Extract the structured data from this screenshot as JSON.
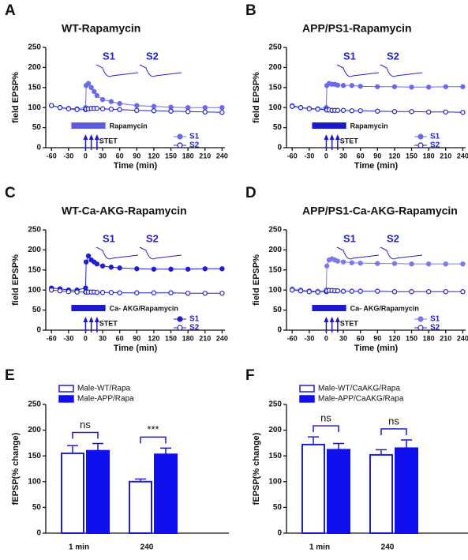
{
  "chart_data": [
    {
      "type": "line",
      "panel": "A",
      "title": "WT-Rapamycin",
      "ylabel": "field EPSP%",
      "xlabel": "Time (min)",
      "x": [
        -60,
        -45,
        -30,
        -15,
        0,
        1,
        5,
        10,
        15,
        20,
        30,
        45,
        60,
        90,
        120,
        150,
        180,
        210,
        240
      ],
      "series": [
        {
          "name": "S1",
          "color": "#6b6be8",
          "marker": "filled",
          "values": [
            105,
            100,
            98,
            97,
            100,
            155,
            160,
            150,
            140,
            130,
            120,
            115,
            110,
            105,
            103,
            101,
            100,
            100,
            100
          ]
        },
        {
          "name": "S2",
          "color": "#2323c4",
          "marker": "open",
          "values": [
            105,
            100,
            97,
            95,
            95,
            96,
            97,
            98,
            98,
            98,
            97,
            96,
            95,
            93,
            92,
            91,
            90,
            89,
            88
          ]
        }
      ],
      "treatment_label": "Rapamycin",
      "treatment_color": "#5c5ce0",
      "stim_label": "STET",
      "inset_labels": [
        "S1",
        "S2"
      ],
      "xlim": [
        -70,
        245
      ],
      "xticks": [
        -60,
        -30,
        0,
        30,
        60,
        90,
        120,
        150,
        180,
        210,
        240
      ],
      "ylim": [
        0,
        250
      ],
      "yticks": [
        0,
        50,
        100,
        150,
        200,
        250
      ]
    },
    {
      "type": "line",
      "panel": "B",
      "title": "APP/PS1-Rapamycin",
      "ylabel": "field EPSP%",
      "xlabel": "Time (min)",
      "x": [
        -60,
        -45,
        -30,
        -15,
        0,
        1,
        5,
        10,
        15,
        20,
        30,
        45,
        60,
        90,
        120,
        150,
        180,
        210,
        240
      ],
      "series": [
        {
          "name": "S1",
          "color": "#6b6be8",
          "marker": "filled",
          "values": [
            105,
            100,
            98,
            97,
            100,
            155,
            160,
            158,
            158,
            156,
            155,
            155,
            153,
            152,
            152,
            151,
            151,
            152,
            152
          ]
        },
        {
          "name": "S2",
          "color": "#2323c4",
          "marker": "open",
          "values": [
            103,
            100,
            97,
            96,
            95,
            94,
            94,
            93,
            93,
            93,
            93,
            92,
            92,
            91,
            90,
            90,
            89,
            89,
            88
          ]
        }
      ],
      "treatment_label": "Rapamycin",
      "treatment_color": "#1a1acc",
      "stim_label": "STET",
      "inset_labels": [
        "S1",
        "S2"
      ],
      "xlim": [
        -70,
        245
      ],
      "xticks": [
        -60,
        -30,
        0,
        30,
        60,
        90,
        120,
        150,
        180,
        210,
        240
      ],
      "ylim": [
        0,
        250
      ],
      "yticks": [
        0,
        50,
        100,
        150,
        200,
        250
      ]
    },
    {
      "type": "line",
      "panel": "C",
      "title": "WT-Ca-AKG-Rapamycin",
      "ylabel": "field EPSP%",
      "xlabel": "Time (min)",
      "x": [
        -60,
        -45,
        -30,
        -15,
        0,
        1,
        5,
        10,
        15,
        20,
        30,
        45,
        60,
        90,
        120,
        150,
        180,
        210,
        240
      ],
      "series": [
        {
          "name": "S1",
          "color": "#1f1fd0",
          "marker": "filled",
          "values": [
            105,
            103,
            100,
            100,
            105,
            170,
            185,
            175,
            170,
            165,
            160,
            157,
            155,
            153,
            152,
            152,
            152,
            153,
            153
          ]
        },
        {
          "name": "S2",
          "color": "#2323c4",
          "marker": "open",
          "values": [
            100,
            98,
            96,
            95,
            95,
            95,
            95,
            95,
            95,
            94,
            94,
            94,
            93,
            93,
            93,
            93,
            92,
            92,
            92
          ]
        }
      ],
      "treatment_label": "Ca- AKG/Rapamycin",
      "treatment_color": "#1a1acc",
      "stim_label": "STET",
      "inset_labels": [
        "S1",
        "S2"
      ],
      "xlim": [
        -70,
        245
      ],
      "xticks": [
        -60,
        -30,
        0,
        30,
        60,
        90,
        120,
        150,
        180,
        210,
        240
      ],
      "ylim": [
        0,
        250
      ],
      "yticks": [
        0,
        50,
        100,
        150,
        200,
        250
      ]
    },
    {
      "type": "line",
      "panel": "D",
      "title": "APP/PS1-Ca-AKG-Rapamycin",
      "ylabel": "field EPSP%",
      "xlabel": "Time (min)",
      "x": [
        -60,
        -45,
        -30,
        -15,
        0,
        1,
        5,
        10,
        15,
        20,
        30,
        45,
        60,
        90,
        120,
        150,
        180,
        210,
        240
      ],
      "series": [
        {
          "name": "S1",
          "color": "#7a7ae8",
          "marker": "filled",
          "values": [
            103,
            100,
            98,
            97,
            100,
            160,
            175,
            178,
            175,
            172,
            170,
            168,
            167,
            166,
            166,
            165,
            165,
            165,
            165
          ]
        },
        {
          "name": "S2",
          "color": "#2323c4",
          "marker": "open",
          "values": [
            100,
            98,
            96,
            95,
            96,
            98,
            99,
            99,
            98,
            98,
            97,
            97,
            97,
            97,
            96,
            96,
            96,
            96,
            96
          ]
        }
      ],
      "treatment_label": "Ca- AKG/Rapamycin",
      "treatment_color": "#1a1acc",
      "stim_label": "STET",
      "inset_labels": [
        "S1",
        "S2"
      ],
      "xlim": [
        -70,
        245
      ],
      "xticks": [
        -60,
        -30,
        0,
        30,
        60,
        90,
        120,
        150,
        180,
        210,
        240
      ],
      "ylim": [
        0,
        250
      ],
      "yticks": [
        0,
        50,
        100,
        150,
        200,
        250
      ]
    },
    {
      "type": "bar",
      "panel": "E",
      "ylabel": "fEPSP(% change)",
      "categories": [
        "1 min",
        "240"
      ],
      "series": [
        {
          "name": "Male-WT/Rapa",
          "color": "#ffffff",
          "stroke": "#1f1fd0",
          "values": [
            155,
            100
          ],
          "errors": [
            15,
            5
          ]
        },
        {
          "name": "Male-APP/Rapa",
          "color": "#1010ee",
          "stroke": "#1010ee",
          "values": [
            160,
            153
          ],
          "errors": [
            14,
            12
          ]
        }
      ],
      "annotations": [
        "ns",
        "***"
      ],
      "ylim": [
        0,
        250
      ],
      "yticks": [
        0,
        50,
        100,
        150,
        200,
        250
      ]
    },
    {
      "type": "bar",
      "panel": "F",
      "ylabel": "fEPSP(% change)",
      "categories": [
        "1 min",
        "240"
      ],
      "series": [
        {
          "name": "Male-WT/CaAKG/Rapa",
          "color": "#ffffff",
          "stroke": "#1f1fd0",
          "values": [
            172,
            152
          ],
          "errors": [
            15,
            10
          ]
        },
        {
          "name": "Male-APP/CaAKG/Rapa",
          "color": "#1010ee",
          "stroke": "#1010ee",
          "values": [
            162,
            165
          ],
          "errors": [
            12,
            16
          ]
        }
      ],
      "annotations": [
        "ns",
        "ns"
      ],
      "ylim": [
        0,
        250
      ],
      "yticks": [
        0,
        50,
        100,
        150,
        200,
        250
      ]
    }
  ]
}
